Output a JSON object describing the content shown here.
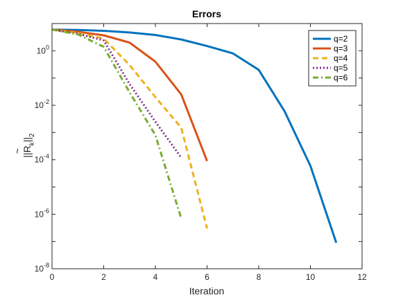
{
  "chart_data": {
    "type": "line",
    "title": "Errors",
    "xlabel": "Iteration",
    "ylabel_main": "||R",
    "ylabel_tilde": "~",
    "ylabel_sub_k": "k",
    "ylabel_norm": "||",
    "ylabel_sub_2": "2",
    "xlim": [
      0,
      12
    ],
    "ylim": [
      1e-08,
      10
    ],
    "yscale": "log",
    "grid": false,
    "legend_position": "top-right",
    "x_ticks": [
      0,
      2,
      4,
      6,
      8,
      10,
      12
    ],
    "x_tick_labels": [
      "0",
      "2",
      "4",
      "6",
      "8",
      "10",
      "12"
    ],
    "y_ticks_exp": [
      -8,
      -6,
      -4,
      -2,
      0
    ],
    "y_tick_base": "10",
    "y_tick_exponents": [
      "-8",
      "-6",
      "-4",
      "-2",
      "0"
    ],
    "series": [
      {
        "name": "q=2",
        "color": "#0072BD",
        "dash": "solid",
        "x": [
          0,
          1,
          2,
          3,
          4,
          5,
          6,
          7,
          8,
          9,
          10,
          11
        ],
        "y": [
          6.0,
          5.8,
          5.4,
          4.7,
          3.8,
          2.6,
          1.5,
          0.8,
          0.2,
          0.006,
          6e-05,
          9e-08
        ]
      },
      {
        "name": "q=3",
        "color": "#D95319",
        "dash": "solid",
        "x": [
          0,
          1,
          2,
          3,
          4,
          5,
          6
        ],
        "y": [
          6.0,
          5.0,
          3.7,
          2.0,
          0.4,
          0.025,
          9e-05
        ]
      },
      {
        "name": "q=4",
        "color": "#EDB120",
        "dash": "dashed",
        "x": [
          0,
          1,
          2,
          3,
          4,
          5,
          6
        ],
        "y": [
          6.0,
          4.5,
          2.8,
          0.3,
          0.02,
          0.0015,
          3e-07
        ]
      },
      {
        "name": "q=5",
        "color": "#7E2F8E",
        "dash": "dotted",
        "x": [
          0,
          1,
          2,
          3,
          4,
          5
        ],
        "y": [
          6.0,
          4.2,
          2.4,
          0.06,
          0.0025,
          0.00012
        ]
      },
      {
        "name": "q=6",
        "color": "#77AC30",
        "dash": "dashdot",
        "x": [
          0,
          1,
          2,
          3,
          4,
          5
        ],
        "y": [
          6.0,
          4.0,
          1.4,
          0.03,
          0.0008,
          7e-07
        ]
      }
    ]
  }
}
